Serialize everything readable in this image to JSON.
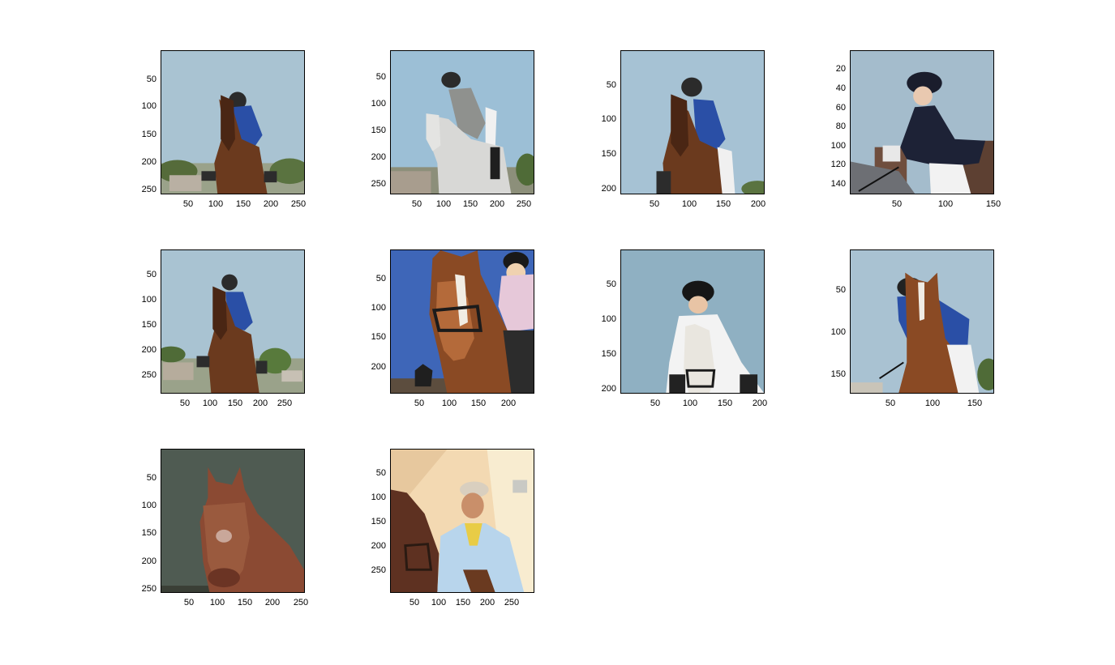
{
  "figure": {
    "panels": [
      {
        "id": "p1",
        "yticks": [
          "50",
          "100",
          "150",
          "200",
          "250"
        ],
        "xticks": [
          "50",
          "100",
          "150",
          "200",
          "250"
        ],
        "scene": "brown-horse-blue-rider"
      },
      {
        "id": "p2",
        "yticks": [
          "50",
          "100",
          "150",
          "200",
          "250"
        ],
        "xticks": [
          "50",
          "100",
          "150",
          "200",
          "250"
        ],
        "scene": "grey-horse-grey-rider"
      },
      {
        "id": "p3",
        "yticks": [
          "50",
          "100",
          "150",
          "200"
        ],
        "xticks": [
          "50",
          "100",
          "150",
          "200"
        ],
        "scene": "brown-horse-blue-rider-crop"
      },
      {
        "id": "p4",
        "yticks": [
          "20",
          "40",
          "60",
          "80",
          "100",
          "120",
          "140"
        ],
        "xticks": [
          "50",
          "100",
          "150"
        ],
        "scene": "navy-jacket-rider"
      },
      {
        "id": "p5",
        "yticks": [
          "50",
          "100",
          "150",
          "200",
          "250"
        ],
        "xticks": [
          "50",
          "100",
          "150",
          "200",
          "250"
        ],
        "scene": "brown-horse-blue-rider-wide"
      },
      {
        "id": "p6",
        "yticks": [
          "50",
          "100",
          "150",
          "200"
        ],
        "xticks": [
          "50",
          "100",
          "150",
          "200"
        ],
        "scene": "chestnut-horse-pink-rider"
      },
      {
        "id": "p7",
        "yticks": [
          "50",
          "100",
          "150",
          "200"
        ],
        "xticks": [
          "50",
          "100",
          "150",
          "200"
        ],
        "scene": "white-horse-white-rider"
      },
      {
        "id": "p8",
        "yticks": [
          "50",
          "100",
          "150"
        ],
        "xticks": [
          "50",
          "100",
          "150"
        ],
        "scene": "chestnut-horse-blue-rider"
      },
      {
        "id": "p9",
        "yticks": [
          "50",
          "100",
          "150",
          "200",
          "250"
        ],
        "xticks": [
          "50",
          "100",
          "150",
          "200",
          "250"
        ],
        "scene": "brown-foal-head"
      },
      {
        "id": "p10",
        "yticks": [
          "50",
          "100",
          "150",
          "200",
          "250"
        ],
        "xticks": [
          "50",
          "100",
          "150",
          "200",
          "250"
        ],
        "scene": "man-with-cap-and-horse"
      }
    ]
  },
  "colors": {
    "sky": "#a9c3d2",
    "sky_deep": "#3e66b8",
    "horse_brown": "#6b3a1e",
    "horse_chestnut": "#8a4a24",
    "horse_grey": "#d8d8d6",
    "jacket_blue": "#2a4fa6",
    "jacket_navy": "#1d2236",
    "foal_bg": "#4f5b52"
  }
}
